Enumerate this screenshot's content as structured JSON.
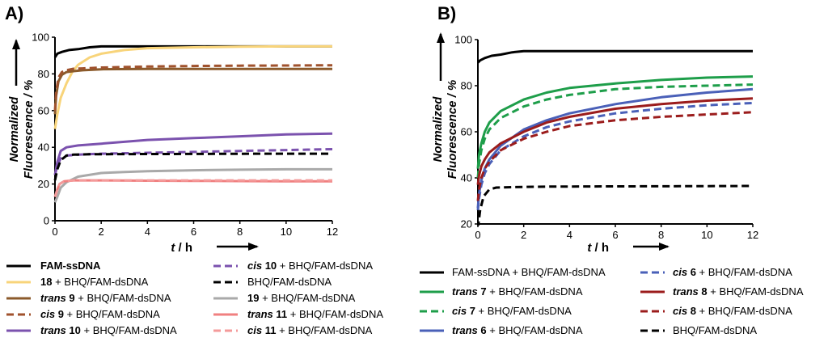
{
  "chart_data": [
    {
      "type": "line",
      "panel_label": "A)",
      "xlabel_var": "t",
      "xlabel_unit": " / h",
      "ylabel_line1": "Normalized",
      "ylabel_line2": "Fluorescence / %",
      "xlim": [
        0,
        12
      ],
      "ylim": [
        0,
        100
      ],
      "xticks": [
        0,
        2,
        4,
        6,
        8,
        10,
        12
      ],
      "yticks": [
        0,
        20,
        40,
        60,
        80,
        100
      ],
      "grid": false,
      "legend_position": "bottom",
      "series": [
        {
          "id": "fam-ssdna",
          "name": "FAM-ssDNA",
          "color": "#000000",
          "dash": "solid",
          "x": [
            0,
            0.1,
            0.3,
            0.6,
            1,
            1.5,
            2,
            3,
            4,
            6,
            8,
            10,
            12
          ],
          "y": [
            89,
            91,
            92,
            93,
            93.5,
            94.5,
            95,
            95,
            95,
            95,
            95,
            95,
            95
          ],
          "legend": [
            {
              "b": "FAM-ssDNA",
              "t": ""
            }
          ]
        },
        {
          "id": "18",
          "name": "18 + BHQ/FAM-dsDNA",
          "color": "#F8D47A",
          "dash": "solid",
          "x": [
            0,
            0.1,
            0.25,
            0.5,
            0.75,
            1,
            1.5,
            2,
            3,
            4,
            6,
            8,
            10,
            12
          ],
          "y": [
            50,
            58,
            67,
            75,
            81,
            85,
            89,
            91,
            93,
            94,
            94.5,
            94.8,
            95,
            95
          ],
          "legend": [
            {
              "b": "18",
              "t": " + BHQ/FAM-dsDNA"
            }
          ]
        },
        {
          "id": "trans-9",
          "name": "trans 9 + BHQ/FAM-dsDNA",
          "color": "#8B5A2B",
          "dash": "solid",
          "x": [
            0,
            0.05,
            0.15,
            0.3,
            0.5,
            0.8,
            1.2,
            2,
            4,
            6,
            8,
            10,
            12
          ],
          "y": [
            58,
            68,
            76,
            79.5,
            81,
            81.5,
            82,
            82.5,
            82.7,
            82.7,
            82.7,
            82.7,
            82.7
          ],
          "legend": [
            {
              "i": "trans",
              "t": " "
            },
            {
              "b": "9",
              "t": " + BHQ/FAM-dsDNA"
            }
          ]
        },
        {
          "id": "cis-9",
          "name": "cis 9 + BHQ/FAM-dsDNA",
          "color": "#A0522D",
          "dash": "dash",
          "x": [
            0,
            0.05,
            0.15,
            0.3,
            0.5,
            0.8,
            1.2,
            2,
            4,
            6,
            8,
            10,
            12
          ],
          "y": [
            60,
            70,
            78,
            81,
            82,
            82.8,
            83,
            83.5,
            84,
            84.3,
            84.5,
            84.6,
            84.7
          ],
          "legend": [
            {
              "i": "cis",
              "t": " "
            },
            {
              "b": "9",
              "t": " + BHQ/FAM-dsDNA"
            }
          ]
        },
        {
          "id": "trans-10",
          "name": "trans 10 + BHQ/FAM-dsDNA",
          "color": "#7B52AE",
          "dash": "solid",
          "x": [
            0,
            0.1,
            0.25,
            0.5,
            1,
            2,
            3,
            4,
            6,
            8,
            10,
            12
          ],
          "y": [
            25,
            32,
            38,
            40,
            41,
            42,
            43,
            44,
            45,
            46,
            47,
            47.5
          ],
          "legend": [
            {
              "i": "trans",
              "t": " "
            },
            {
              "b": "10",
              "t": " + BHQ/FAM-dsDNA"
            }
          ]
        },
        {
          "id": "cis-10",
          "name": "cis 10 + BHQ/FAM-dsDNA",
          "color": "#7B52AE",
          "dash": "dash",
          "x": [
            0,
            0.1,
            0.25,
            0.5,
            1,
            2,
            4,
            6,
            8,
            10,
            12
          ],
          "y": [
            25,
            30,
            34,
            35.5,
            36,
            36.5,
            37,
            37.5,
            38,
            38.5,
            39
          ],
          "legend": [
            {
              "i": "cis",
              "t": " "
            },
            {
              "b": "10",
              "t": " + BHQ/FAM-dsDNA"
            }
          ]
        },
        {
          "id": "bhq-fam-dsdna-a",
          "name": "BHQ/FAM-dsDNA",
          "color": "#000000",
          "dash": "dash",
          "x": [
            0,
            0.1,
            0.25,
            0.5,
            0.8,
            1.5,
            3,
            6,
            9,
            12
          ],
          "y": [
            22,
            28,
            33,
            35.5,
            36,
            36.2,
            36.3,
            36.4,
            36.5,
            36.5
          ],
          "legend": [
            {
              "t": "BHQ/FAM-dsDNA"
            }
          ]
        },
        {
          "id": "19",
          "name": "19 + BHQ/FAM-dsDNA",
          "color": "#A9A9A9",
          "dash": "solid",
          "x": [
            0,
            0.1,
            0.25,
            0.5,
            1,
            2,
            3,
            4,
            6,
            8,
            10,
            12
          ],
          "y": [
            10,
            13,
            18,
            21,
            24,
            26,
            26.5,
            27,
            27.5,
            27.8,
            28,
            28
          ],
          "legend": [
            {
              "b": "19",
              "t": " + BHQ/FAM-dsDNA"
            }
          ]
        },
        {
          "id": "trans-11",
          "name": "trans 11 + BHQ/FAM-dsDNA",
          "color": "#F08080",
          "dash": "solid",
          "x": [
            0,
            0.1,
            0.2,
            0.4,
            0.8,
            2,
            4,
            6,
            8,
            10,
            12
          ],
          "y": [
            13,
            17,
            20,
            21.5,
            22,
            22,
            21.8,
            21.7,
            21.6,
            21.5,
            21.5
          ],
          "legend": [
            {
              "i": "trans",
              "t": " "
            },
            {
              "b": "11",
              "t": " + BHQ/FAM-dsDNA"
            }
          ]
        },
        {
          "id": "cis-11",
          "name": "cis 11 + BHQ/FAM-dsDNA",
          "color": "#F49A9A",
          "dash": "dash",
          "x": [
            0,
            0.1,
            0.2,
            0.4,
            0.8,
            2,
            4,
            6,
            8,
            10,
            12
          ],
          "y": [
            13,
            17,
            20,
            21.5,
            22,
            22,
            22,
            22,
            22,
            22,
            22
          ],
          "legend": [
            {
              "i": "cis",
              "t": " "
            },
            {
              "b": "11",
              "t": " + BHQ/FAM-dsDNA"
            }
          ]
        }
      ]
    },
    {
      "type": "line",
      "panel_label": "B)",
      "xlabel_var": "t",
      "xlabel_unit": " / h",
      "ylabel_line1": "Normalized",
      "ylabel_line2": "Fluorescence / %",
      "xlim": [
        0,
        12
      ],
      "ylim": [
        20,
        100
      ],
      "xticks": [
        0,
        2,
        4,
        6,
        8,
        10,
        12
      ],
      "yticks": [
        20,
        40,
        60,
        80,
        100
      ],
      "grid": false,
      "legend_position": "bottom",
      "series": [
        {
          "id": "fam-ssdna-bhq",
          "name": "FAM-ssDNA + BHQ/FAM-dsDNA",
          "color": "#000000",
          "dash": "solid",
          "x": [
            0,
            0.1,
            0.3,
            0.6,
            1,
            1.5,
            2,
            3,
            4,
            6,
            8,
            10,
            12
          ],
          "y": [
            90,
            91,
            92,
            93,
            93.5,
            94.5,
            95,
            95,
            95,
            95,
            95,
            95,
            95
          ],
          "legend": [
            {
              "t": "FAM-ssDNA + BHQ/FAM-dsDNA"
            }
          ]
        },
        {
          "id": "trans-7",
          "name": "trans 7 + BHQ/FAM-dsDNA",
          "color": "#1E9E4A",
          "dash": "solid",
          "x": [
            0,
            0.05,
            0.15,
            0.3,
            0.5,
            1,
            2,
            3,
            4,
            6,
            8,
            10,
            12
          ],
          "y": [
            44,
            50,
            55,
            60,
            64,
            69,
            74,
            77,
            79,
            81,
            82.5,
            83.5,
            84
          ],
          "legend": [
            {
              "i": "trans",
              "t": " "
            },
            {
              "b": "7",
              "t": " + BHQ/FAM-dsDNA"
            }
          ]
        },
        {
          "id": "cis-7",
          "name": "cis 7 + BHQ/FAM-dsDNA",
          "color": "#1E9E4A",
          "dash": "dash",
          "x": [
            0,
            0.05,
            0.15,
            0.3,
            0.5,
            1,
            2,
            3,
            4,
            6,
            8,
            10,
            12
          ],
          "y": [
            40,
            46,
            52,
            57,
            61,
            66,
            71,
            74,
            76,
            78.5,
            79.5,
            80,
            80.5
          ],
          "legend": [
            {
              "i": "cis",
              "t": " "
            },
            {
              "b": "7",
              "t": " + BHQ/FAM-dsDNA"
            }
          ]
        },
        {
          "id": "trans-6",
          "name": "trans 6 + BHQ/FAM-dsDNA",
          "color": "#4A60B8",
          "dash": "solid",
          "x": [
            0,
            0.05,
            0.15,
            0.3,
            0.5,
            1,
            2,
            3,
            4,
            6,
            8,
            10,
            12
          ],
          "y": [
            27,
            33,
            39,
            44,
            48,
            54,
            61,
            65,
            68,
            72,
            75,
            77,
            78.5
          ],
          "legend": [
            {
              "i": "trans",
              "t": " "
            },
            {
              "b": "6",
              "t": " + BHQ/FAM-dsDNA"
            }
          ]
        },
        {
          "id": "cis-6",
          "name": "cis 6 + BHQ/FAM-dsDNA",
          "color": "#4A60B8",
          "dash": "dash",
          "x": [
            0,
            0.05,
            0.15,
            0.3,
            0.5,
            1,
            2,
            3,
            4,
            6,
            8,
            10,
            12
          ],
          "y": [
            26,
            31,
            37,
            42,
            46,
            52,
            58,
            62,
            64.5,
            68,
            70,
            71.5,
            72.5
          ],
          "legend": [
            {
              "i": "cis",
              "t": " "
            },
            {
              "b": "6",
              "t": " + BHQ/FAM-dsDNA"
            }
          ]
        },
        {
          "id": "trans-8",
          "name": "trans 8 + BHQ/FAM-dsDNA",
          "color": "#9B1C1C",
          "dash": "solid",
          "x": [
            0,
            0.05,
            0.15,
            0.3,
            0.5,
            1,
            2,
            3,
            4,
            6,
            8,
            10,
            12
          ],
          "y": [
            37,
            41,
            45,
            48,
            51,
            55,
            60,
            64,
            66.5,
            70,
            72,
            73.5,
            74.5
          ],
          "legend": [
            {
              "i": "trans",
              "t": " "
            },
            {
              "b": "8",
              "t": " + BHQ/FAM-dsDNA"
            }
          ]
        },
        {
          "id": "cis-8",
          "name": "cis 8 + BHQ/FAM-dsDNA",
          "color": "#9B1C1C",
          "dash": "dash",
          "x": [
            0,
            0.05,
            0.15,
            0.3,
            0.5,
            1,
            2,
            3,
            4,
            6,
            8,
            10,
            12
          ],
          "y": [
            30,
            35,
            40,
            44,
            47,
            52,
            57,
            60,
            62.5,
            65,
            66.5,
            67.5,
            68.5
          ],
          "legend": [
            {
              "i": "cis",
              "t": " "
            },
            {
              "b": "8",
              "t": " + BHQ/FAM-dsDNA"
            }
          ]
        },
        {
          "id": "bhq-fam-dsdna-b",
          "name": "BHQ/FAM-dsDNA",
          "color": "#000000",
          "dash": "dash",
          "x": [
            0,
            0.1,
            0.25,
            0.5,
            0.8,
            1.5,
            3,
            6,
            9,
            12
          ],
          "y": [
            18,
            26,
            32,
            35,
            35.8,
            36,
            36.2,
            36.3,
            36.4,
            36.5
          ],
          "legend": [
            {
              "t": "BHQ/FAM-dsDNA"
            }
          ]
        }
      ]
    }
  ]
}
